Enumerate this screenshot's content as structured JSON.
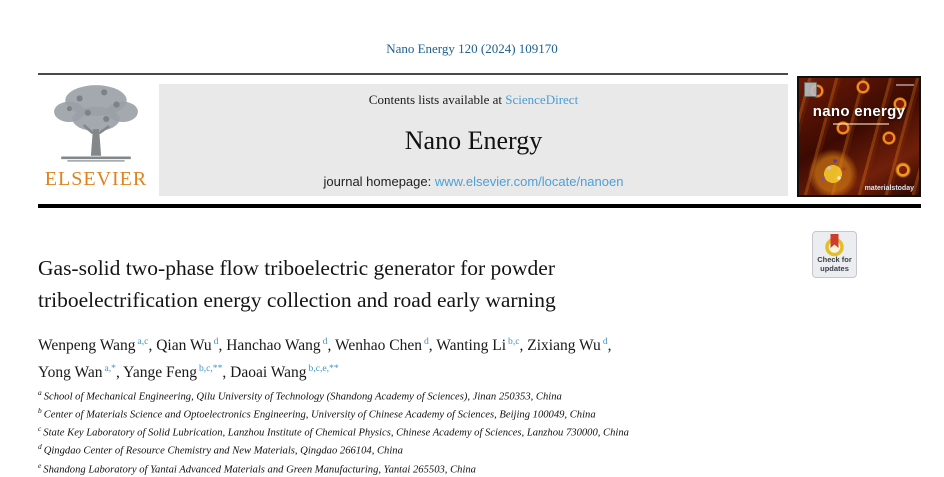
{
  "citation": "Nano Energy 120 (2024) 109170",
  "header": {
    "contents_prefix": "Contents lists available at ",
    "contents_link": "ScienceDirect",
    "journal_title": "Nano Energy",
    "homepage_prefix": "journal homepage: ",
    "homepage_link": "www.elsevier.com/locate/nanoen"
  },
  "publisher": {
    "wordmark": "ELSEVIER"
  },
  "cover": {
    "title": "nano energy",
    "footer_brand": "materialstoday"
  },
  "badge": {
    "line1": "Check for",
    "line2": "updates"
  },
  "article": {
    "title": "Gas-solid two-phase flow triboelectric generator for powder triboelectrification energy collection and road early warning",
    "authors": [
      {
        "name": "Wenpeng Wang",
        "sup": "a,c"
      },
      {
        "name": "Qian Wu",
        "sup": "d"
      },
      {
        "name": "Hanchao Wang",
        "sup": "d"
      },
      {
        "name": "Wenhao Chen",
        "sup": "d"
      },
      {
        "name": "Wanting Li",
        "sup": "b,c"
      },
      {
        "name": "Zixiang Wu",
        "sup": "d"
      },
      {
        "name": "Yong Wan",
        "sup": "a,*"
      },
      {
        "name": "Yange Feng",
        "sup": "b,c,**"
      },
      {
        "name": "Daoai Wang",
        "sup": "b,c,e,**"
      }
    ],
    "affiliations": [
      {
        "label": "a",
        "text": "School of Mechanical Engineering, Qilu University of Technology (Shandong Academy of Sciences), Jinan 250353, China"
      },
      {
        "label": "b",
        "text": "Center of Materials Science and Optoelectronics Engineering, University of Chinese Academy of Sciences, Beijing 100049, China"
      },
      {
        "label": "c",
        "text": "State Key Laboratory of Solid Lubrication, Lanzhou Institute of Chemical Physics, Chinese Academy of Sciences, Lanzhou 730000, China"
      },
      {
        "label": "d",
        "text": "Qingdao Center of Resource Chemistry and New Materials, Qingdao 266104, China"
      },
      {
        "label": "e",
        "text": "Shandong Laboratory of Yantai Advanced Materials and Green Manufacturing, Yantai 265503, China"
      }
    ]
  },
  "colors": {
    "citation_blue": "#21618C",
    "link_blue": "#4D9FD6",
    "sciencedirect_blue": "#4B9CD3",
    "superscript_blue": "#4292C6",
    "elsevier_orange": "#E0821E",
    "header_box_gray": "#E9E9E9",
    "cover_maroon": "#400B03",
    "badge_circle_yellow": "#E2BE2A",
    "badge_bookmark_red": "#CE3C2C"
  }
}
